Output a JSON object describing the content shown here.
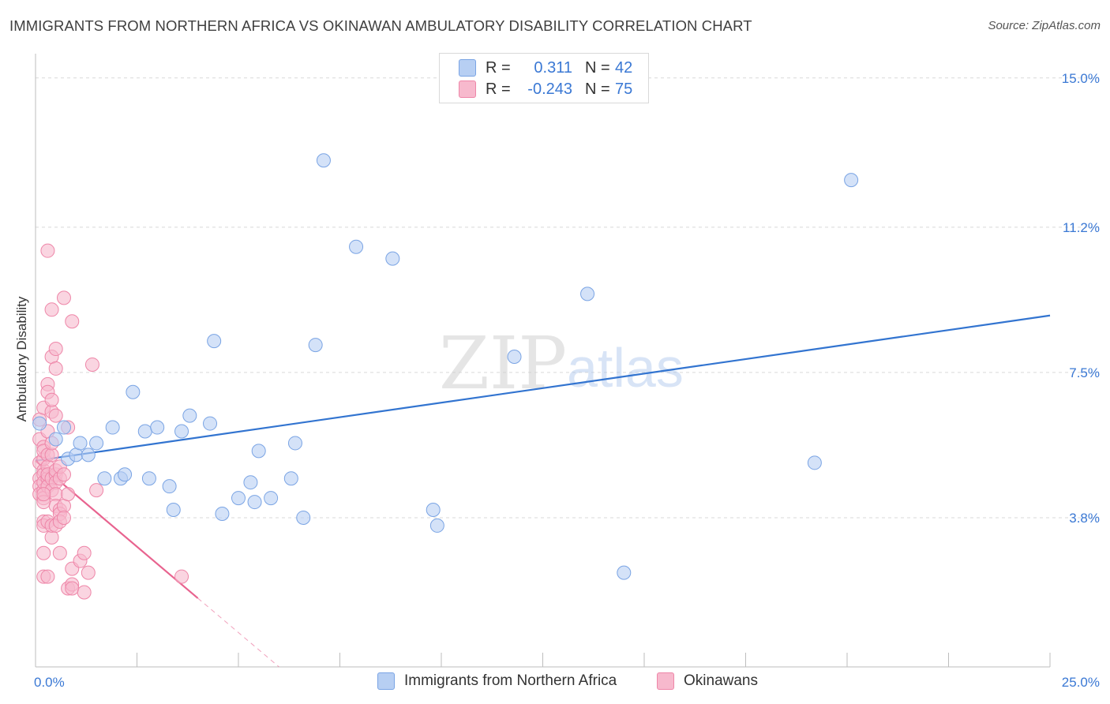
{
  "title": "IMMIGRANTS FROM NORTHERN AFRICA VS OKINAWAN AMBULATORY DISABILITY CORRELATION CHART",
  "source": "Source: ZipAtlas.com",
  "watermark": {
    "zip": "ZIP",
    "atlas": "atlas"
  },
  "legend_top": {
    "row1": {
      "r_label": "R =",
      "r_value": "0.311",
      "n_label": "N =",
      "n_value": "42"
    },
    "row2": {
      "r_label": "R =",
      "r_value": "-0.243",
      "n_label": "N =",
      "n_value": "75"
    }
  },
  "colors": {
    "blue_fill": "#b7cff3",
    "blue_stroke": "#7aa4e4",
    "blue_line": "#3274d0",
    "pink_fill": "#f7b9cd",
    "pink_stroke": "#ee86a8",
    "pink_line": "#e8638f",
    "axis_text": "#3a78d4",
    "grid": "#d9d9d9"
  },
  "chart_data": {
    "type": "scatter",
    "xlabel": "",
    "ylabel": "Ambulatory Disability",
    "xlim": [
      0,
      25
    ],
    "ylim": [
      0,
      15.8
    ],
    "x_tick_labels": [
      "0.0%",
      "25.0%"
    ],
    "y_ticks": [
      3.8,
      7.5,
      11.2,
      15.0
    ],
    "y_tick_labels": [
      "3.8%",
      "7.5%",
      "11.2%",
      "15.0%"
    ],
    "series": [
      {
        "name": "Immigrants from Northern Africa",
        "color": "blue",
        "points": [
          [
            0.1,
            6.2
          ],
          [
            0.5,
            5.8
          ],
          [
            0.7,
            6.1
          ],
          [
            0.8,
            5.3
          ],
          [
            1.0,
            5.4
          ],
          [
            1.1,
            5.7
          ],
          [
            1.3,
            5.4
          ],
          [
            1.5,
            5.7
          ],
          [
            1.7,
            4.8
          ],
          [
            1.9,
            6.1
          ],
          [
            2.1,
            4.8
          ],
          [
            2.2,
            4.9
          ],
          [
            2.4,
            7.0
          ],
          [
            2.7,
            6.0
          ],
          [
            2.8,
            4.8
          ],
          [
            3.0,
            6.1
          ],
          [
            3.3,
            4.6
          ],
          [
            3.4,
            4.0
          ],
          [
            3.6,
            6.0
          ],
          [
            3.8,
            6.4
          ],
          [
            4.3,
            6.2
          ],
          [
            4.4,
            8.3
          ],
          [
            4.6,
            3.9
          ],
          [
            5.0,
            4.3
          ],
          [
            5.3,
            4.7
          ],
          [
            5.4,
            4.2
          ],
          [
            5.5,
            5.5
          ],
          [
            5.8,
            4.3
          ],
          [
            6.3,
            4.8
          ],
          [
            6.4,
            5.7
          ],
          [
            6.6,
            3.8
          ],
          [
            6.9,
            8.2
          ],
          [
            7.1,
            12.9
          ],
          [
            7.9,
            10.7
          ],
          [
            8.8,
            10.4
          ],
          [
            9.8,
            4.0
          ],
          [
            9.9,
            3.6
          ],
          [
            11.8,
            7.9
          ],
          [
            13.6,
            9.5
          ],
          [
            14.5,
            2.4
          ],
          [
            19.2,
            5.2
          ],
          [
            20.1,
            12.4
          ]
        ],
        "trend": {
          "x": [
            0,
            25
          ],
          "y": [
            5.25,
            8.95
          ]
        }
      },
      {
        "name": "Okinawans",
        "color": "pink",
        "points": [
          [
            0.1,
            6.3
          ],
          [
            0.1,
            5.2
          ],
          [
            0.1,
            4.8
          ],
          [
            0.1,
            4.6
          ],
          [
            0.1,
            4.4
          ],
          [
            0.1,
            5.8
          ],
          [
            0.2,
            5.0
          ],
          [
            0.2,
            4.9
          ],
          [
            0.2,
            4.5
          ],
          [
            0.2,
            5.3
          ],
          [
            0.2,
            5.6
          ],
          [
            0.2,
            4.7
          ],
          [
            0.2,
            4.3
          ],
          [
            0.2,
            5.5
          ],
          [
            0.2,
            4.2
          ],
          [
            0.2,
            2.9
          ],
          [
            0.2,
            2.3
          ],
          [
            0.2,
            3.7
          ],
          [
            0.2,
            3.6
          ],
          [
            0.2,
            6.6
          ],
          [
            0.3,
            5.4
          ],
          [
            0.3,
            4.8
          ],
          [
            0.3,
            5.1
          ],
          [
            0.3,
            4.6
          ],
          [
            0.3,
            4.9
          ],
          [
            0.3,
            7.2
          ],
          [
            0.3,
            7.0
          ],
          [
            0.3,
            6.0
          ],
          [
            0.3,
            2.3
          ],
          [
            0.3,
            3.7
          ],
          [
            0.3,
            10.6
          ],
          [
            0.4,
            4.8
          ],
          [
            0.4,
            5.4
          ],
          [
            0.4,
            5.7
          ],
          [
            0.4,
            4.5
          ],
          [
            0.4,
            6.5
          ],
          [
            0.4,
            6.8
          ],
          [
            0.4,
            7.9
          ],
          [
            0.4,
            9.1
          ],
          [
            0.4,
            3.3
          ],
          [
            0.4,
            3.6
          ],
          [
            0.5,
            4.9
          ],
          [
            0.5,
            5.0
          ],
          [
            0.5,
            4.7
          ],
          [
            0.5,
            4.4
          ],
          [
            0.5,
            6.4
          ],
          [
            0.5,
            7.6
          ],
          [
            0.5,
            8.1
          ],
          [
            0.5,
            4.1
          ],
          [
            0.5,
            3.6
          ],
          [
            0.6,
            4.8
          ],
          [
            0.6,
            4.0
          ],
          [
            0.6,
            3.9
          ],
          [
            0.6,
            5.1
          ],
          [
            0.6,
            2.9
          ],
          [
            0.6,
            3.7
          ],
          [
            0.7,
            4.9
          ],
          [
            0.7,
            4.1
          ],
          [
            0.7,
            3.8
          ],
          [
            0.7,
            9.4
          ],
          [
            0.8,
            6.1
          ],
          [
            0.8,
            4.4
          ],
          [
            0.8,
            2.0
          ],
          [
            0.9,
            2.1
          ],
          [
            0.9,
            2.0
          ],
          [
            0.9,
            8.8
          ],
          [
            0.9,
            2.5
          ],
          [
            1.1,
            2.7
          ],
          [
            1.2,
            1.9
          ],
          [
            1.2,
            2.9
          ],
          [
            1.3,
            2.4
          ],
          [
            1.4,
            7.7
          ],
          [
            1.5,
            4.5
          ],
          [
            3.6,
            2.3
          ],
          [
            0.2,
            4.4
          ]
        ],
        "trend": {
          "x": [
            0,
            4.0
          ],
          "y": [
            5.25,
            1.75
          ]
        },
        "trend_dashed": {
          "x": [
            4.0,
            6.0
          ],
          "y": [
            1.75,
            0.0
          ]
        }
      }
    ]
  },
  "bottom_legend": {
    "item1": "Immigrants from Northern Africa",
    "item2": "Okinawans"
  }
}
